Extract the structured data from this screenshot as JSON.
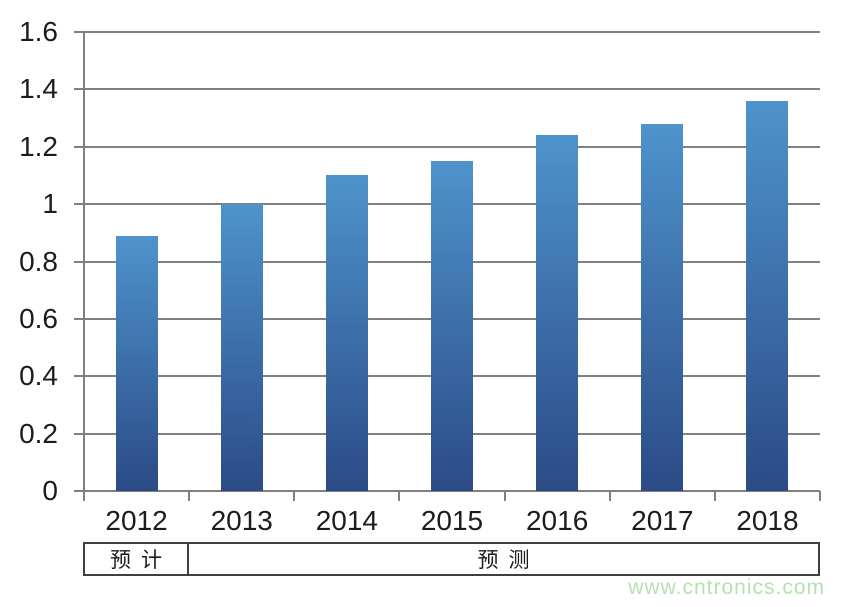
{
  "chart_data": {
    "type": "bar",
    "title": "",
    "xlabel": "",
    "ylabel": "",
    "categories": [
      "2012",
      "2013",
      "2014",
      "2015",
      "2016",
      "2017",
      "2018"
    ],
    "values": [
      0.89,
      1.0,
      1.1,
      1.15,
      1.24,
      1.28,
      1.36
    ],
    "ylim": [
      0,
      1.6
    ],
    "ytick_interval": 0.2,
    "ytick_labels": [
      "0",
      "0.2",
      "0.4",
      "0.6",
      "0.8",
      "1",
      "1.2",
      "1.4",
      "1.6"
    ],
    "grid": true,
    "legend": null,
    "colors": {
      "bar_gradient_top": "#4e93cd",
      "bar_gradient_bottom": "#2b4b86",
      "gridline": "#808080",
      "axis": "#808080",
      "tick_label": "#1c1c1c"
    }
  },
  "footer_table": {
    "cells": [
      {
        "label": "预计",
        "columns": 1
      },
      {
        "label": "预测",
        "columns": 6
      }
    ],
    "border_color": "#3f3f3f",
    "text_color": "#1c1c1c"
  },
  "watermark": {
    "text": "www.cntronics.com",
    "color": "#b6e1b0"
  }
}
